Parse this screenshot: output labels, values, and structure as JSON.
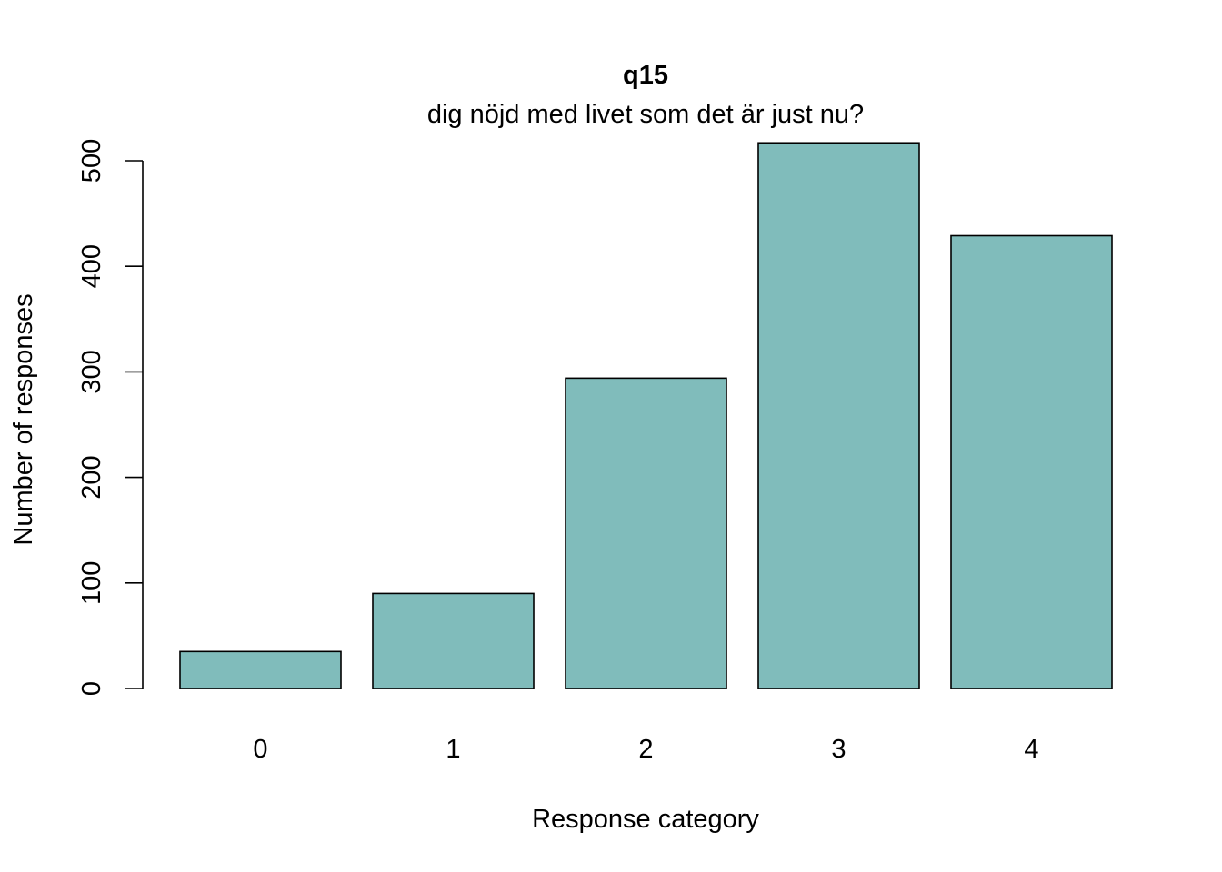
{
  "chart_data": {
    "type": "bar",
    "title": "q15",
    "subtitle": "dig nöjd med livet som det är just nu?",
    "xlabel": "Response category",
    "ylabel": "Number of responses",
    "categories": [
      "0",
      "1",
      "2",
      "3",
      "4"
    ],
    "values": [
      35,
      90,
      294,
      517,
      429
    ],
    "ylim": [
      0,
      517
    ],
    "yticks": [
      0,
      100,
      200,
      300,
      400,
      500
    ],
    "bar_color": "#80BCBB",
    "bar_border_color": "#000000",
    "grid": false,
    "legend": "none"
  }
}
